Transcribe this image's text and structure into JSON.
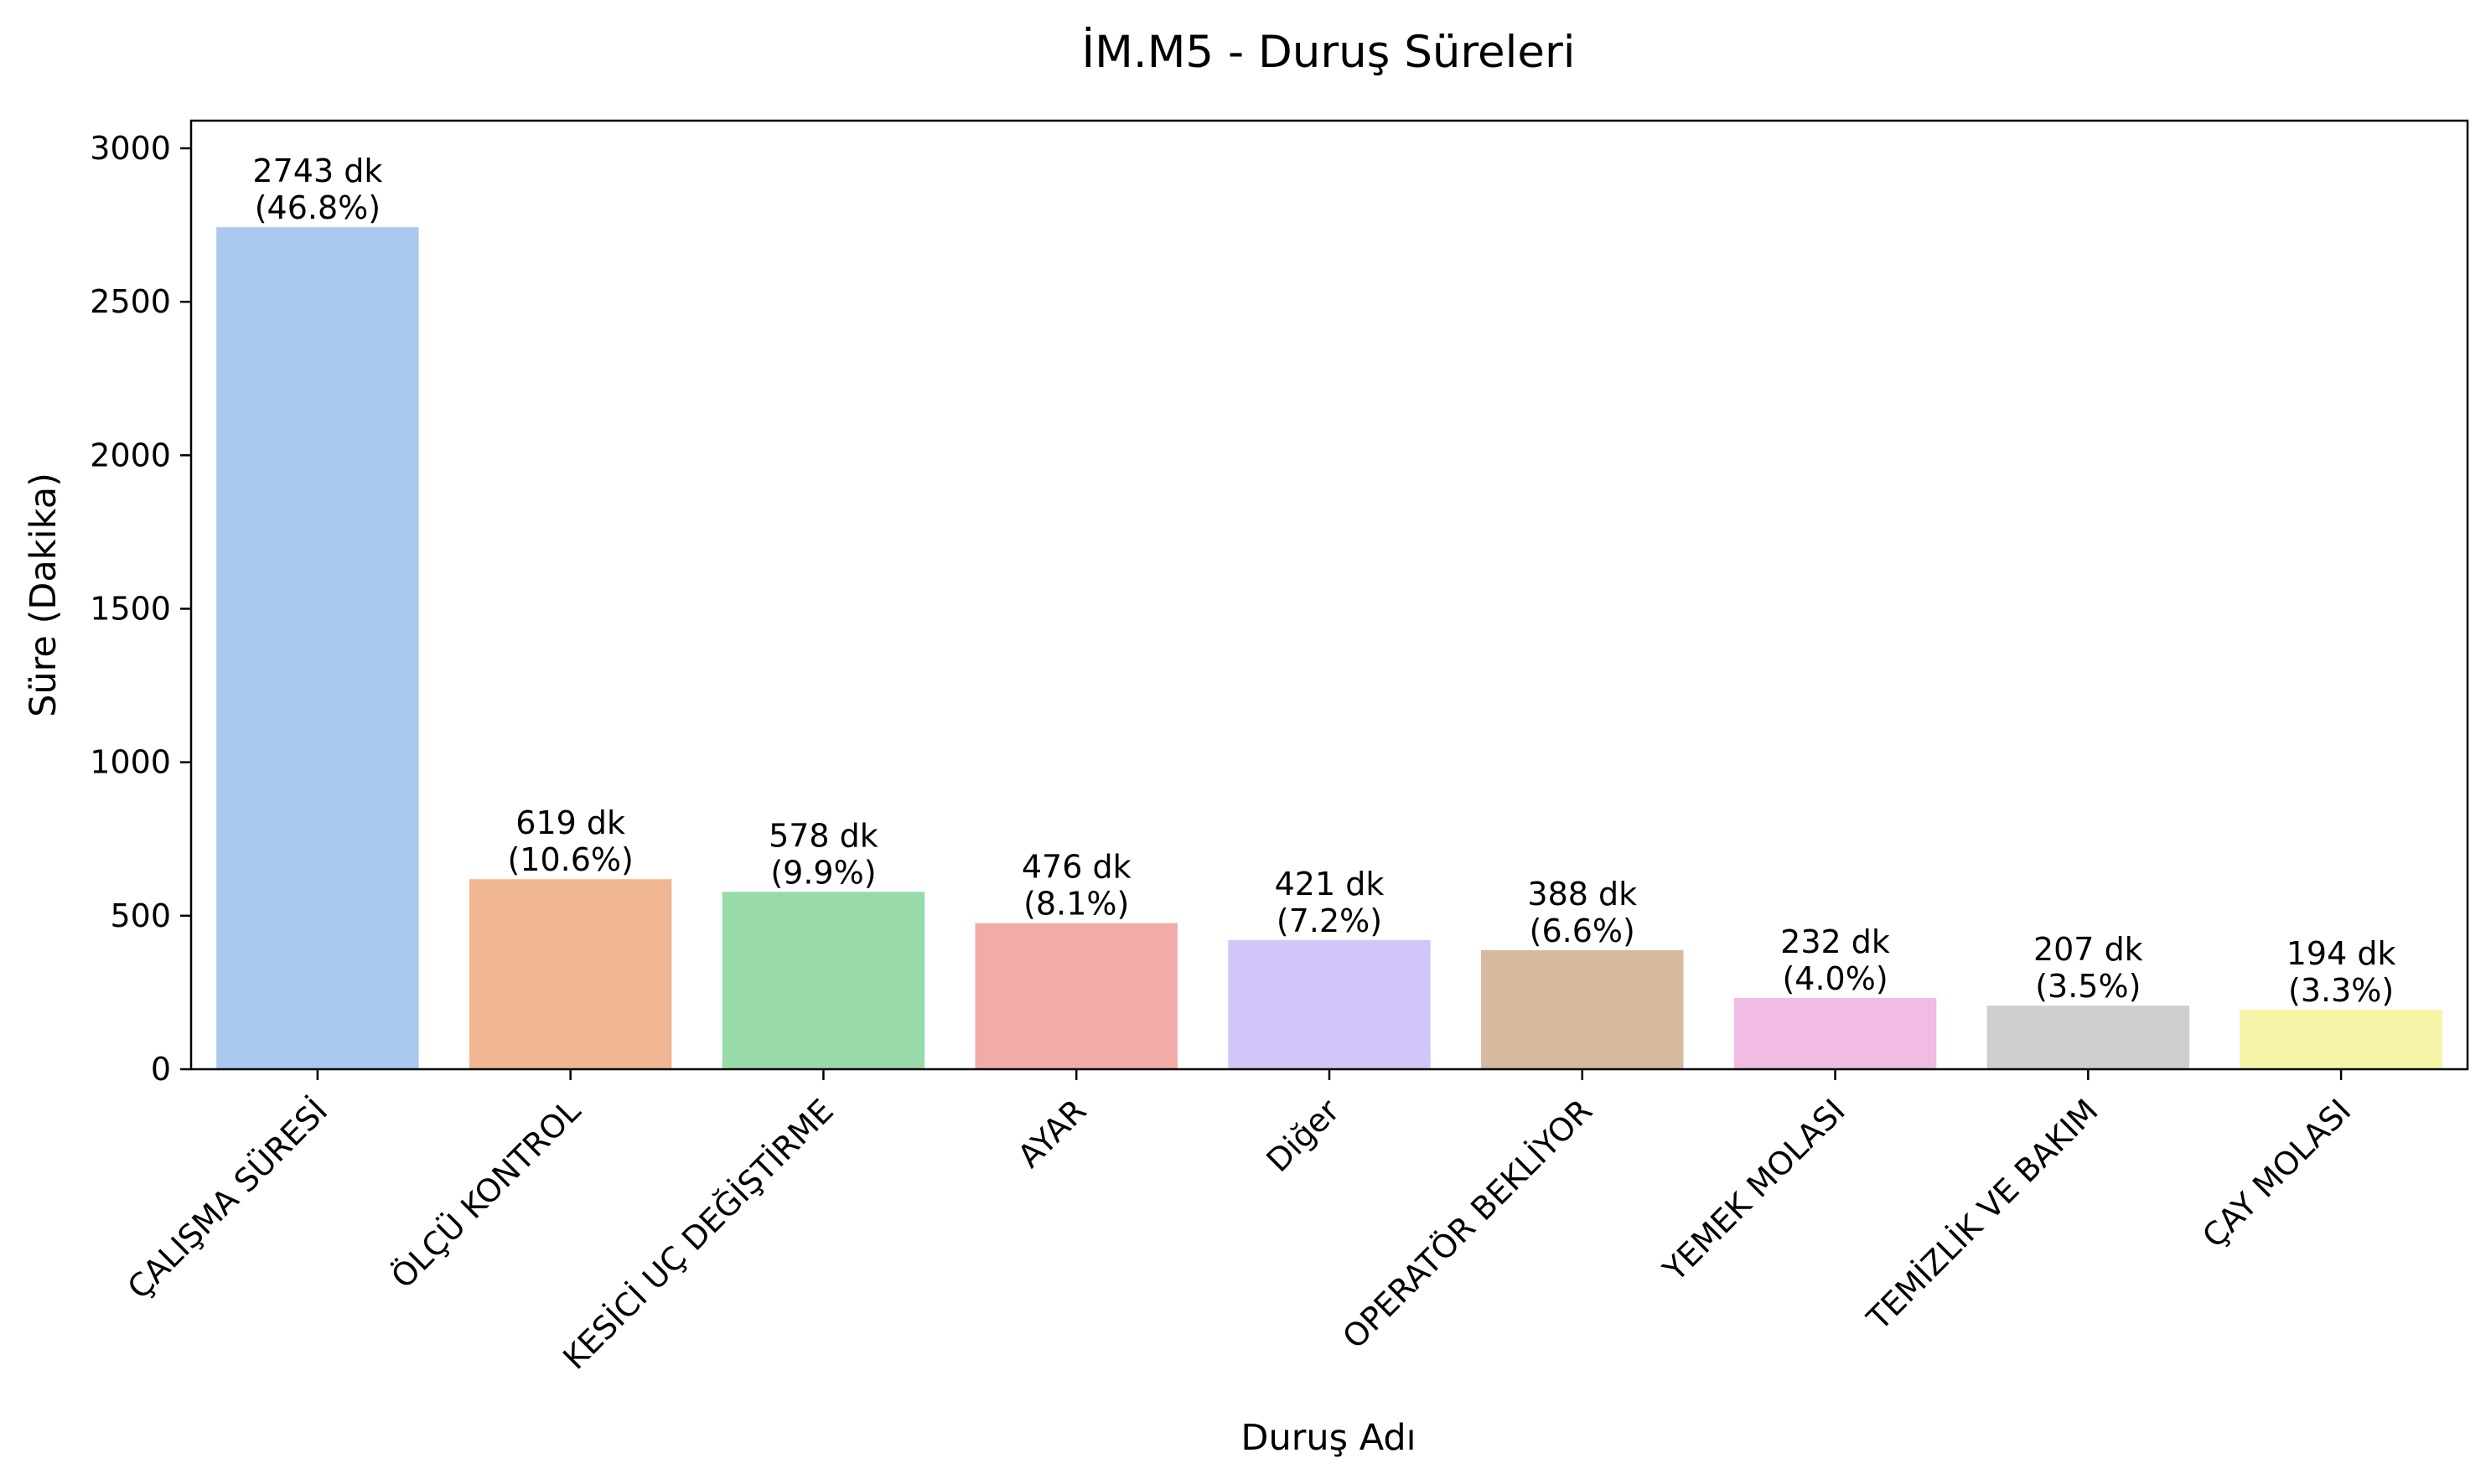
{
  "chart_data": {
    "type": "bar",
    "title": "İM.M5 - Duruş Süreleri",
    "xlabel": "Duruş Adı",
    "ylabel": "Süre (Dakika)",
    "ylim": [
      0,
      3090
    ],
    "yticks": [
      0,
      500,
      1000,
      1500,
      2000,
      2500,
      3000
    ],
    "grid": false,
    "legend": "none",
    "categories": [
      "ÇALIŞMA SÜRESİ",
      "ÖLÇÜ KONTROL",
      "KESİCİ UÇ DEĞİŞTİRME",
      "AYAR",
      "Diğer",
      "OPERATÖR BEKLİYOR",
      "YEMEK MOLASI",
      "TEMİZLİK VE BAKIM",
      "ÇAY MOLASI"
    ],
    "values": [
      2743,
      619,
      578,
      476,
      421,
      388,
      232,
      207,
      194
    ],
    "value_labels": [
      "2743 dk",
      "619 dk",
      "578 dk",
      "476 dk",
      "421 dk",
      "388 dk",
      "232 dk",
      "207 dk",
      "194 dk"
    ],
    "percent_labels": [
      "(46.8%)",
      "(10.6%)",
      "(9.9%)",
      "(8.1%)",
      "(7.2%)",
      "(6.6%)",
      "(4.0%)",
      "(3.5%)",
      "(3.3%)"
    ],
    "colors": [
      "#abc9ee",
      "#f0b792",
      "#98dba8",
      "#f2aca8",
      "#d3c5f8",
      "#d6baa0",
      "#f1bce3",
      "#cfcfcf",
      "#f6f4a7"
    ]
  }
}
